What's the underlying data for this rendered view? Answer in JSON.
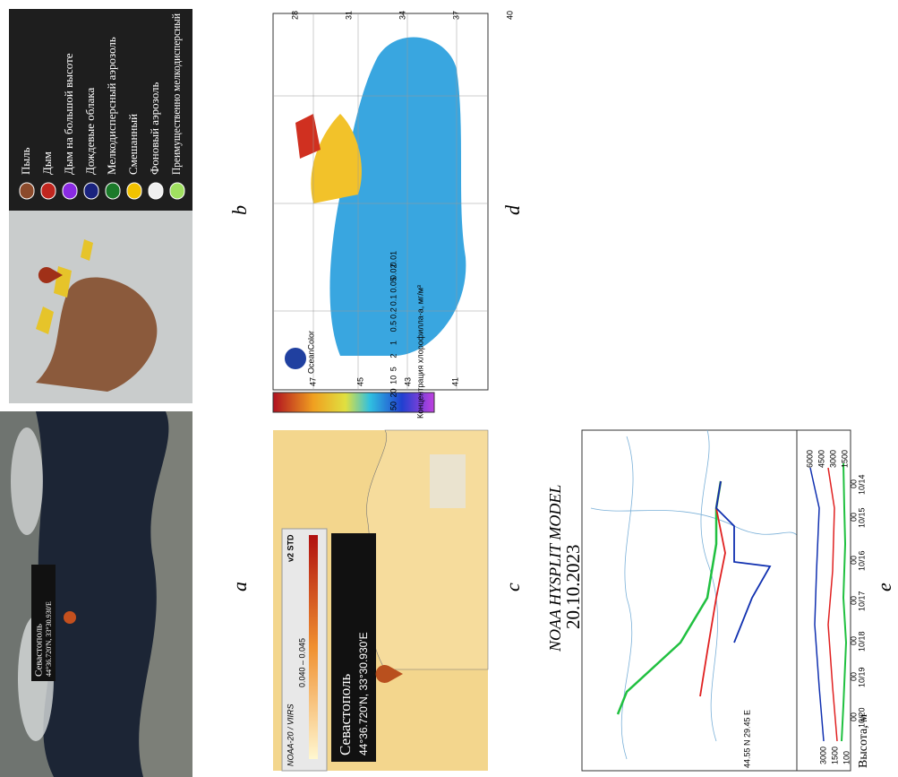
{
  "panels": {
    "a": {
      "label": "a",
      "popup": {
        "name": "Севастополь",
        "coords": "44°36.720'N, 33°30.930'E"
      }
    },
    "b": {
      "label": "b",
      "legend": [
        {
          "label": "Пыль",
          "color": "#8b4a2b"
        },
        {
          "label": "Дым",
          "color": "#c0261f"
        },
        {
          "label": "Дым на большой высоте",
          "color": "#8a2be2"
        },
        {
          "label": "Дождевые облака",
          "color": "#1a237e"
        },
        {
          "label": "Мелкодисперсный аэрозоль",
          "color": "#1b7a2a"
        },
        {
          "label": "Смешанный",
          "color": "#f2c200"
        },
        {
          "label": "Фоновый аэрозоль",
          "color": "#f0f0f0"
        },
        {
          "label": "Преимущественно мелкодисперсный",
          "color": "#a0e060"
        }
      ]
    },
    "c": {
      "label": "c",
      "source": "NOAA-20 / VIIRS",
      "version": "v2 STD",
      "range": "0.040 – 0.045",
      "popup": {
        "name": "Севастополь",
        "coords": "44°36.720'N, 33°30.930'E"
      }
    },
    "d": {
      "label": "d",
      "colorbar_title": "Концентрация хлорофилла-а, мг/м³",
      "colorbar_ticks": [
        "50",
        "20",
        "10",
        "5",
        "2",
        "1",
        "0.5",
        "0.2",
        "0.1",
        "0.05",
        "0.02",
        "0.01"
      ],
      "lat_labels": [
        "47",
        "45",
        "43",
        "41"
      ],
      "lon_labels": [
        "28",
        "31",
        "34",
        "37",
        "40"
      ],
      "logo": "OceanColor"
    },
    "e": {
      "label": "e",
      "title": "NOAA HYSPLIT MODEL",
      "date": "20.10.2023",
      "source": "44.55 N  29.45 E",
      "axis_title": "Высота, м",
      "height_ticks": [
        "6000",
        "4500",
        "3000",
        "1500"
      ],
      "start_heights": [
        "3000",
        "1500",
        "100"
      ],
      "dates": [
        "10/14",
        "10/15",
        "10/16",
        "10/17",
        "10/18",
        "10/19",
        "10/20"
      ],
      "hour": "00"
    }
  }
}
